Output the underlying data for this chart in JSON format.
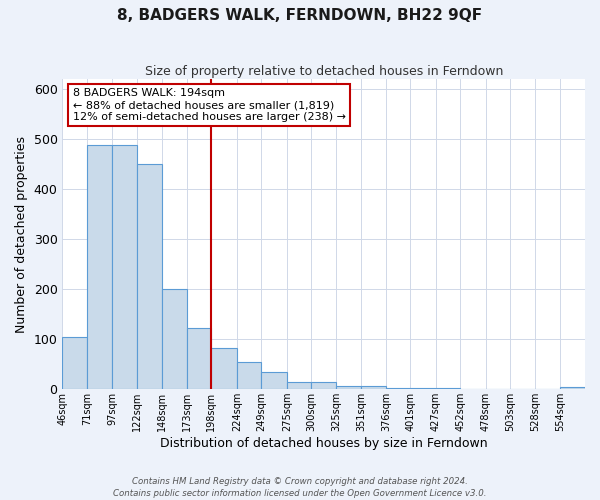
{
  "title": "8, BADGERS WALK, FERNDOWN, BH22 9QF",
  "subtitle": "Size of property relative to detached houses in Ferndown",
  "xlabel": "Distribution of detached houses by size in Ferndown",
  "ylabel": "Number of detached properties",
  "bar_edges": [
    46,
    71,
    97,
    122,
    148,
    173,
    198,
    224,
    249,
    275,
    300,
    325,
    351,
    376,
    401,
    427,
    452,
    478,
    503,
    528,
    554,
    579
  ],
  "bar_heights": [
    105,
    488,
    488,
    450,
    200,
    122,
    82,
    55,
    35,
    15,
    15,
    7,
    7,
    2,
    2,
    2,
    0,
    0,
    0,
    0,
    5
  ],
  "bar_color": "#c9daea",
  "bar_edge_color": "#5b9bd5",
  "red_line_x": 198,
  "ylim": [
    0,
    620
  ],
  "xlim": [
    46,
    579
  ],
  "annotation_title": "8 BADGERS WALK: 194sqm",
  "annotation_line1": "← 88% of detached houses are smaller (1,819)",
  "annotation_line2": "12% of semi-detached houses are larger (238) →",
  "annotation_box_color": "#ffffff",
  "annotation_box_edge_color": "#c00000",
  "footer_line1": "Contains HM Land Registry data © Crown copyright and database right 2024.",
  "footer_line2": "Contains public sector information licensed under the Open Government Licence v3.0.",
  "background_color": "#edf2fa",
  "plot_background_color": "#ffffff",
  "grid_color": "#d0d8e8",
  "tick_labels": [
    "46sqm",
    "71sqm",
    "97sqm",
    "122sqm",
    "148sqm",
    "173sqm",
    "198sqm",
    "224sqm",
    "249sqm",
    "275sqm",
    "300sqm",
    "325sqm",
    "351sqm",
    "376sqm",
    "401sqm",
    "427sqm",
    "452sqm",
    "478sqm",
    "503sqm",
    "528sqm",
    "554sqm"
  ]
}
